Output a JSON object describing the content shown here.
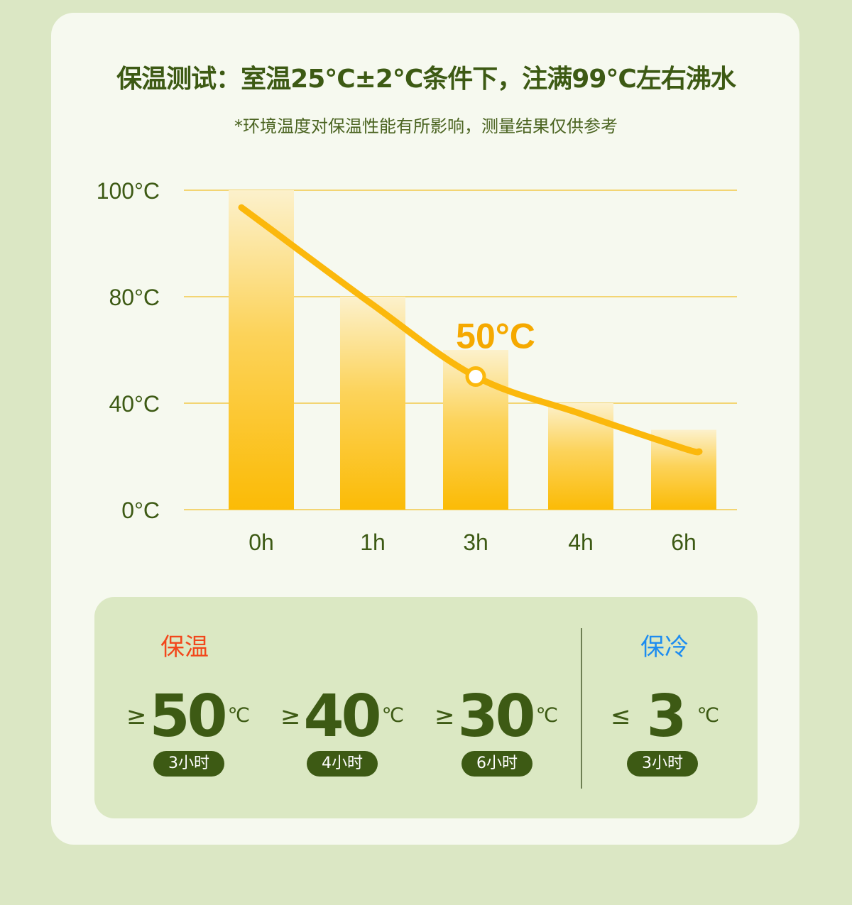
{
  "header": {
    "title": "保温测试：室温25°C±2°C条件下，注满99°C左右沸水",
    "subtitle": "*环境温度对保温性能有所影响，测量结果仅供参考"
  },
  "chart_data": {
    "type": "bar",
    "categories": [
      "0h",
      "1h",
      "3h",
      "4h",
      "6h"
    ],
    "values": [
      100,
      80,
      60,
      40,
      30
    ],
    "y_ticks": [
      0,
      40,
      80,
      100
    ],
    "y_tick_labels": [
      "0°C",
      "40°C",
      "80°C",
      "100°C"
    ],
    "ylim": [
      0,
      100
    ],
    "y_scale": "non-uniform (ticks equally spaced)",
    "grid": true,
    "series": [
      {
        "type": "line",
        "values": [
          94,
          77,
          50,
          36,
          23
        ]
      }
    ],
    "annotation": {
      "category": "3h",
      "value": 50,
      "label": "50°C"
    },
    "colors": {
      "bar": "#fbbd0c",
      "bar_top": "#fcf1cc",
      "line": "#fbb80c",
      "grid": "#f2c94a",
      "label": "#f5a900"
    }
  },
  "panel": {
    "warm_label": "保温",
    "cold_label": "保冷",
    "warm_color": "#f2471b",
    "cold_color": "#1d8cf0",
    "stats": [
      {
        "op": "≥",
        "num": "50",
        "unit": "℃",
        "duration": "3小时"
      },
      {
        "op": "≥",
        "num": "40",
        "unit": "℃",
        "duration": "4小时"
      },
      {
        "op": "≥",
        "num": "30",
        "unit": "℃",
        "duration": "6小时"
      },
      {
        "op": "≤",
        "num": "3",
        "unit": "℃",
        "duration": "3小时"
      }
    ]
  }
}
